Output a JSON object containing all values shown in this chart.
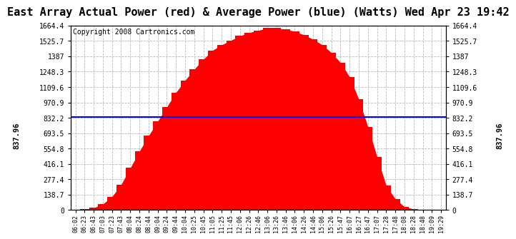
{
  "title": "East Array Actual Power (red) & Average Power (blue) (Watts) Wed Apr 23 19:42",
  "copyright": "Copyright 2008 Cartronics.com",
  "y_max": 1664.4,
  "y_min": 0.0,
  "y_ticks": [
    0.0,
    138.7,
    277.4,
    416.1,
    554.8,
    693.5,
    832.2,
    970.9,
    1109.6,
    1248.3,
    1387.0,
    1525.7,
    1664.4
  ],
  "average_power": 837.96,
  "left_ylabel": "837.96",
  "right_ylabel": "837.96",
  "fill_color": "#FF0000",
  "line_color": "#0000FF",
  "background_color": "#FFFFFF",
  "grid_color": "#BBBBBB",
  "title_fontsize": 11,
  "copyright_fontsize": 7,
  "x_labels": [
    "06:02",
    "06:23",
    "06:43",
    "07:03",
    "07:23",
    "07:43",
    "08:04",
    "08:24",
    "08:44",
    "09:04",
    "09:24",
    "09:44",
    "10:04",
    "10:25",
    "10:45",
    "11:05",
    "11:25",
    "11:45",
    "12:06",
    "12:26",
    "12:46",
    "13:06",
    "13:26",
    "13:46",
    "14:06",
    "14:26",
    "14:46",
    "15:06",
    "15:26",
    "15:47",
    "16:07",
    "16:27",
    "16:47",
    "17:07",
    "17:28",
    "17:48",
    "18:08",
    "18:28",
    "18:48",
    "19:09",
    "19:29"
  ],
  "power_values": [
    2,
    8,
    20,
    55,
    120,
    230,
    380,
    530,
    670,
    800,
    930,
    1060,
    1170,
    1270,
    1360,
    1440,
    1490,
    1530,
    1570,
    1600,
    1620,
    1640,
    1640,
    1630,
    1610,
    1580,
    1540,
    1490,
    1420,
    1330,
    1200,
    1000,
    750,
    480,
    220,
    100,
    30,
    10,
    3,
    1,
    0
  ]
}
